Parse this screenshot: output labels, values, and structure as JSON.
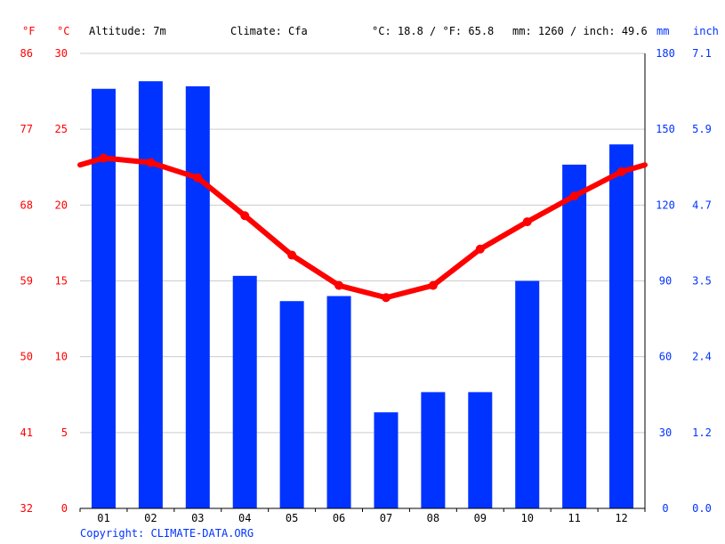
{
  "header": {
    "unit_f": "°F",
    "unit_c": "°C",
    "altitude": "Altitude: 7m",
    "climate": "Climate: Cfa",
    "temp_avg": "°C: 18.8 / °F: 65.8",
    "precip_total": "mm: 1260 / inch: 49.6",
    "unit_mm": "mm",
    "unit_inch": "inch"
  },
  "copyright": "Copyright: CLIMATE-DATA.ORG",
  "colors": {
    "temp": "#ff0000",
    "precip": "#0033ff",
    "grid": "#cccccc"
  },
  "chart_data": {
    "type": "bar",
    "categories": [
      "01",
      "02",
      "03",
      "04",
      "05",
      "06",
      "07",
      "08",
      "09",
      "10",
      "11",
      "12"
    ],
    "series": [
      {
        "values": [
          166,
          169,
          167,
          92,
          82,
          84,
          38,
          46,
          46,
          90,
          136,
          144
        ],
        "axis": "right",
        "unit": "mm",
        "type": "bar",
        "color": "#0033ff"
      },
      {
        "values": [
          23.1,
          22.8,
          21.8,
          19.3,
          16.7,
          14.7,
          13.9,
          14.7,
          17.1,
          18.9,
          20.6,
          22.2
        ],
        "axis": "left",
        "unit": "°C",
        "type": "line",
        "color": "#ff0000"
      }
    ],
    "axes": {
      "left_c": {
        "ticks": [
          "30",
          "25",
          "20",
          "15",
          "10",
          "5",
          "0"
        ],
        "range": [
          0,
          30
        ]
      },
      "left_f": {
        "ticks": [
          "86",
          "77",
          "68",
          "59",
          "50",
          "41",
          "32"
        ]
      },
      "right_mm": {
        "ticks": [
          "180",
          "150",
          "120",
          "90",
          "60",
          "30",
          "0"
        ],
        "range": [
          0,
          180
        ]
      },
      "right_in": {
        "ticks": [
          "7.1",
          "5.9",
          "4.7",
          "3.5",
          "2.4",
          "1.2",
          "0.0"
        ]
      }
    },
    "grid": true
  }
}
